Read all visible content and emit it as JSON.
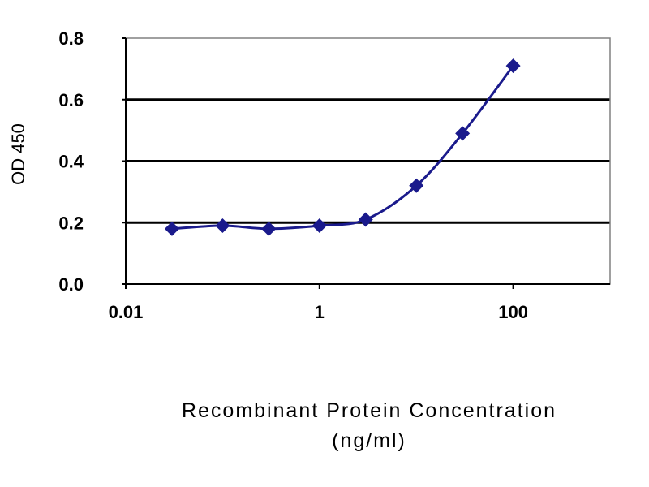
{
  "chart_data": {
    "type": "line",
    "xlabel_line1": "Recombinant Protein Concentration",
    "xlabel_line2": "(ng/ml)",
    "ylabel": "OD 450",
    "xscale": "log",
    "xlim": [
      0.01,
      1000
    ],
    "ylim": [
      0.0,
      0.8
    ],
    "xticks": [
      {
        "value": 0.01,
        "label": "0.01"
      },
      {
        "value": 1,
        "label": "1"
      },
      {
        "value": 100,
        "label": "100"
      }
    ],
    "yticks": [
      {
        "value": 0.0,
        "label": "0.0"
      },
      {
        "value": 0.2,
        "label": "0.2"
      },
      {
        "value": 0.4,
        "label": "0.4"
      },
      {
        "value": 0.6,
        "label": "0.6"
      },
      {
        "value": 0.8,
        "label": "0.8"
      }
    ],
    "grid": "horizontal",
    "legend": "none",
    "series": [
      {
        "color": "#1a1a8c",
        "marker": "diamond",
        "x": [
          0.03,
          0.1,
          0.3,
          1,
          3,
          10,
          30,
          100
        ],
        "y": [
          0.18,
          0.19,
          0.18,
          0.19,
          0.21,
          0.32,
          0.49,
          0.71
        ]
      }
    ]
  }
}
